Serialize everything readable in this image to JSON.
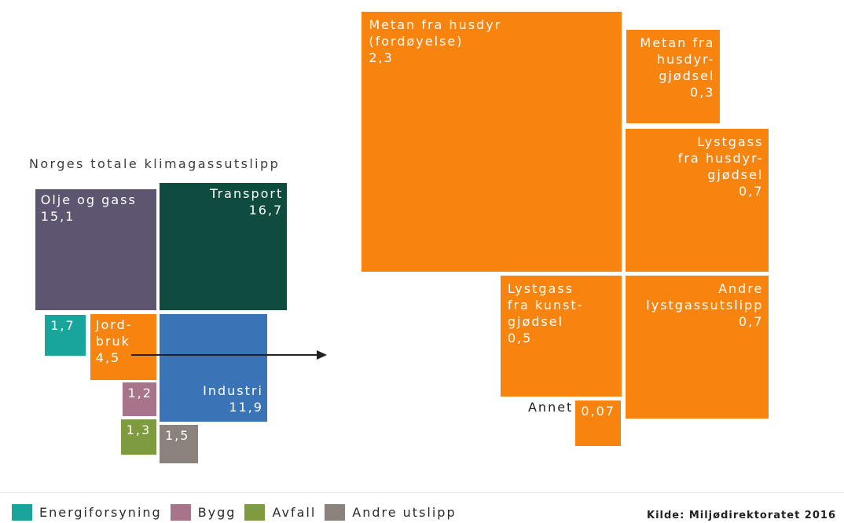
{
  "chart_data": [
    {
      "type": "area",
      "title": "Norges totale klimagassutslipp",
      "items": [
        {
          "label_lines": [
            "Olje og gass"
          ],
          "value_label": "15,1",
          "value": 15.1,
          "color": "#5e5670"
        },
        {
          "label_lines": [
            "Transport"
          ],
          "value_label": "16,7",
          "value": 16.7,
          "color": "#0f4b3f"
        },
        {
          "value_label": "1,7",
          "value": 1.7,
          "legend_entry": 0
        },
        {
          "label_lines": [
            "Jord-",
            "bruk"
          ],
          "value_label": "4,5",
          "value": 4.5,
          "color": "#f7840f"
        },
        {
          "label_lines": [
            "Industri"
          ],
          "value_label": "11,9",
          "value": 11.9,
          "color": "#3a74b6"
        },
        {
          "value_label": "1,2",
          "value": 1.2,
          "legend_entry": 1
        },
        {
          "value_label": "1,3",
          "value": 1.3,
          "legend_entry": 2
        },
        {
          "value_label": "1,5",
          "value": 1.5,
          "legend_entry": 3
        }
      ]
    },
    {
      "type": "area",
      "color": "#f7840f",
      "items": [
        {
          "label_lines": [
            "Metan fra husdyr",
            "(fordøyelse)"
          ],
          "value_label": "2,3",
          "value": 2.3
        },
        {
          "label_lines": [
            "Metan fra",
            "husdyr-",
            "gjødsel"
          ],
          "value_label": "0,3",
          "value": 0.3
        },
        {
          "label_lines": [
            "Lystgass",
            "fra husdyr-",
            "gjødsel"
          ],
          "value_label": "0,7",
          "value": 0.7
        },
        {
          "label_lines": [
            "Lystgass",
            "fra kunst-",
            "gjødsel"
          ],
          "value_label": "0,5",
          "value": 0.5
        },
        {
          "label_lines": [
            "Andre",
            "lystgassutslipp"
          ],
          "value_label": "0,7",
          "value": 0.7
        },
        {
          "outside_label": "Annet",
          "value_label": "0,07",
          "value": 0.07
        }
      ]
    }
  ],
  "legend": [
    {
      "name": "Energiforsyning",
      "color": "#1aa59c"
    },
    {
      "name": "Bygg",
      "color": "#a8748c"
    },
    {
      "name": "Avfall",
      "color": "#7f9b3f"
    },
    {
      "name": "Andre utslipp",
      "color": "#8c827c"
    }
  ],
  "source": "Kilde: Miljødirektoratet 2016"
}
